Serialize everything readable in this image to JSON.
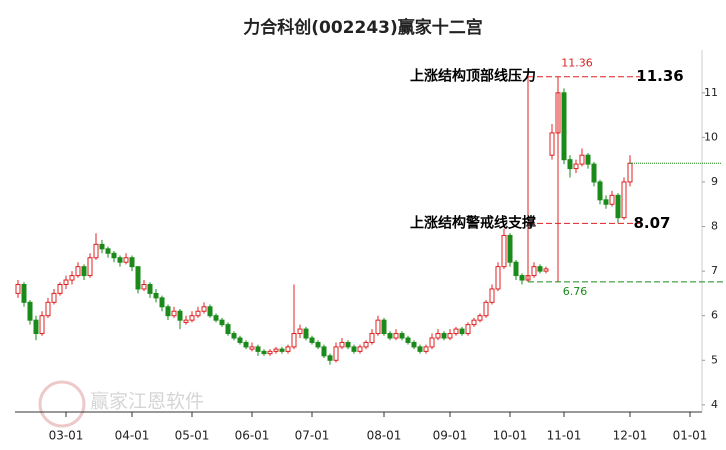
{
  "chart_data": {
    "type": "candlestick",
    "title": "力合科创(002243)赢家十二宫",
    "watermark": "赢家江恩软件",
    "up_color": "#e02020",
    "down_color": "#1a8a1a",
    "xlim": [
      -0.5,
      114
    ],
    "ylim": [
      3.84,
      11.96
    ],
    "yticks": [
      4,
      5,
      6,
      7,
      8,
      9,
      10,
      11
    ],
    "xticks": [
      {
        "value": 8,
        "label": "03-01"
      },
      {
        "value": 19,
        "label": "04-01"
      },
      {
        "value": 29,
        "label": "05-01"
      },
      {
        "value": 39,
        "label": "06-01"
      },
      {
        "value": 49,
        "label": "07-01"
      },
      {
        "value": 61,
        "label": "08-01"
      },
      {
        "value": 72,
        "label": "09-01"
      },
      {
        "value": 82,
        "label": "10-01"
      },
      {
        "value": 91,
        "label": "11-01"
      },
      {
        "value": 102,
        "label": "12-01"
      },
      {
        "value": 112,
        "label": "01-01"
      }
    ],
    "zone_x": [
      85,
      90
    ],
    "annotations": [
      {
        "label": "上涨结构顶部线压力",
        "value": 11.36,
        "color": "#e02020"
      },
      {
        "label": "上涨结构警戒线支撑",
        "value": 8.07,
        "color": "#e02020"
      },
      {
        "value": 6.76,
        "color": "#1a8a1a"
      }
    ],
    "ohlc": [
      [
        6.5,
        6.8,
        6.4,
        6.7
      ],
      [
        6.7,
        6.75,
        6.2,
        6.3
      ],
      [
        6.3,
        6.35,
        5.8,
        5.9
      ],
      [
        5.9,
        6.0,
        5.45,
        5.6
      ],
      [
        5.6,
        6.1,
        5.55,
        6.0
      ],
      [
        6.0,
        6.4,
        5.95,
        6.3
      ],
      [
        6.3,
        6.6,
        6.25,
        6.5
      ],
      [
        6.5,
        6.75,
        6.45,
        6.7
      ],
      [
        6.7,
        6.9,
        6.6,
        6.8
      ],
      [
        6.8,
        7.0,
        6.7,
        6.9
      ],
      [
        6.9,
        7.2,
        6.85,
        7.1
      ],
      [
        7.1,
        7.15,
        6.8,
        6.9
      ],
      [
        6.9,
        7.4,
        6.85,
        7.3
      ],
      [
        7.3,
        7.85,
        7.25,
        7.6
      ],
      [
        7.6,
        7.7,
        7.4,
        7.5
      ],
      [
        7.5,
        7.55,
        7.3,
        7.4
      ],
      [
        7.4,
        7.45,
        7.2,
        7.3
      ],
      [
        7.3,
        7.35,
        7.1,
        7.2
      ],
      [
        7.2,
        7.4,
        7.15,
        7.3
      ],
      [
        7.3,
        7.35,
        7.0,
        7.1
      ],
      [
        7.1,
        7.1,
        6.5,
        6.6
      ],
      [
        6.6,
        6.8,
        6.55,
        6.7
      ],
      [
        6.7,
        6.75,
        6.4,
        6.5
      ],
      [
        6.5,
        6.6,
        6.3,
        6.4
      ],
      [
        6.4,
        6.45,
        6.1,
        6.2
      ],
      [
        6.2,
        6.25,
        5.9,
        6.0
      ],
      [
        6.0,
        6.2,
        5.95,
        6.1
      ],
      [
        6.1,
        6.15,
        5.7,
        5.9
      ],
      [
        5.85,
        6.0,
        5.8,
        5.9
      ],
      [
        5.9,
        6.1,
        5.85,
        6.0
      ],
      [
        6.0,
        6.2,
        5.95,
        6.1
      ],
      [
        6.1,
        6.3,
        6.05,
        6.2
      ],
      [
        6.2,
        6.25,
        5.95,
        6.0
      ],
      [
        6.0,
        6.05,
        5.85,
        5.9
      ],
      [
        5.9,
        5.95,
        5.75,
        5.8
      ],
      [
        5.8,
        5.85,
        5.55,
        5.6
      ],
      [
        5.6,
        5.65,
        5.45,
        5.5
      ],
      [
        5.5,
        5.55,
        5.35,
        5.4
      ],
      [
        5.4,
        5.45,
        5.25,
        5.3
      ],
      [
        5.25,
        5.4,
        5.2,
        5.3
      ],
      [
        5.3,
        5.35,
        5.1,
        5.2
      ],
      [
        5.2,
        5.25,
        5.1,
        5.15
      ],
      [
        5.15,
        5.25,
        5.1,
        5.2
      ],
      [
        5.2,
        5.3,
        5.15,
        5.25
      ],
      [
        5.25,
        5.3,
        5.15,
        5.2
      ],
      [
        5.2,
        5.35,
        5.15,
        5.3
      ],
      [
        5.3,
        6.7,
        5.25,
        5.6
      ],
      [
        5.6,
        5.8,
        5.5,
        5.7
      ],
      [
        5.7,
        5.75,
        5.45,
        5.5
      ],
      [
        5.5,
        5.55,
        5.35,
        5.4
      ],
      [
        5.4,
        5.45,
        5.25,
        5.3
      ],
      [
        5.3,
        5.35,
        5.05,
        5.1
      ],
      [
        5.1,
        5.15,
        4.9,
        5.0
      ],
      [
        5.0,
        5.4,
        4.95,
        5.3
      ],
      [
        5.3,
        5.5,
        5.25,
        5.4
      ],
      [
        5.4,
        5.45,
        5.25,
        5.3
      ],
      [
        5.3,
        5.35,
        5.15,
        5.2
      ],
      [
        5.2,
        5.35,
        5.15,
        5.3
      ],
      [
        5.3,
        5.45,
        5.25,
        5.4
      ],
      [
        5.4,
        5.7,
        5.35,
        5.6
      ],
      [
        5.6,
        6.0,
        5.55,
        5.9
      ],
      [
        5.9,
        5.95,
        5.55,
        5.6
      ],
      [
        5.6,
        5.65,
        5.45,
        5.5
      ],
      [
        5.5,
        5.7,
        5.45,
        5.6
      ],
      [
        5.6,
        5.65,
        5.45,
        5.5
      ],
      [
        5.5,
        5.55,
        5.35,
        5.4
      ],
      [
        5.4,
        5.45,
        5.25,
        5.3
      ],
      [
        5.3,
        5.35,
        5.15,
        5.2
      ],
      [
        5.2,
        5.35,
        5.15,
        5.3
      ],
      [
        5.3,
        5.6,
        5.25,
        5.5
      ],
      [
        5.5,
        5.7,
        5.45,
        5.6
      ],
      [
        5.6,
        5.65,
        5.45,
        5.5
      ],
      [
        5.5,
        5.7,
        5.45,
        5.6
      ],
      [
        5.6,
        5.75,
        5.55,
        5.7
      ],
      [
        5.7,
        5.75,
        5.55,
        5.6
      ],
      [
        5.6,
        5.85,
        5.55,
        5.8
      ],
      [
        5.8,
        5.95,
        5.75,
        5.9
      ],
      [
        5.9,
        6.05,
        5.85,
        6.0
      ],
      [
        6.0,
        6.35,
        5.95,
        6.3
      ],
      [
        6.3,
        6.7,
        6.25,
        6.6
      ],
      [
        6.6,
        7.2,
        6.55,
        7.1
      ],
      [
        7.1,
        7.95,
        7.05,
        7.8
      ],
      [
        7.8,
        7.85,
        7.1,
        7.2
      ],
      [
        7.2,
        7.25,
        6.8,
        6.9
      ],
      [
        6.9,
        6.95,
        6.7,
        6.8
      ],
      [
        6.8,
        7.0,
        6.76,
        6.9
      ],
      [
        6.9,
        7.2,
        6.85,
        7.1
      ],
      [
        7.1,
        7.15,
        6.95,
        7.0
      ],
      [
        7.0,
        7.1,
        6.95,
        7.05
      ],
      [
        9.6,
        10.3,
        9.5,
        10.1
      ],
      [
        10.1,
        11.36,
        10.0,
        11.0
      ],
      [
        11.0,
        11.1,
        9.4,
        9.5
      ],
      [
        9.5,
        9.6,
        9.1,
        9.3
      ],
      [
        9.3,
        9.5,
        9.2,
        9.4
      ],
      [
        9.4,
        9.75,
        9.35,
        9.6
      ],
      [
        9.6,
        9.65,
        9.3,
        9.4
      ],
      [
        9.4,
        9.45,
        8.9,
        9.0
      ],
      [
        9.0,
        9.05,
        8.5,
        8.6
      ],
      [
        8.6,
        8.7,
        8.4,
        8.5
      ],
      [
        8.5,
        8.8,
        8.45,
        8.7
      ],
      [
        8.7,
        8.75,
        8.07,
        8.2
      ],
      [
        8.2,
        9.1,
        8.15,
        9.0
      ],
      [
        9.0,
        9.6,
        8.9,
        9.42
      ]
    ]
  }
}
